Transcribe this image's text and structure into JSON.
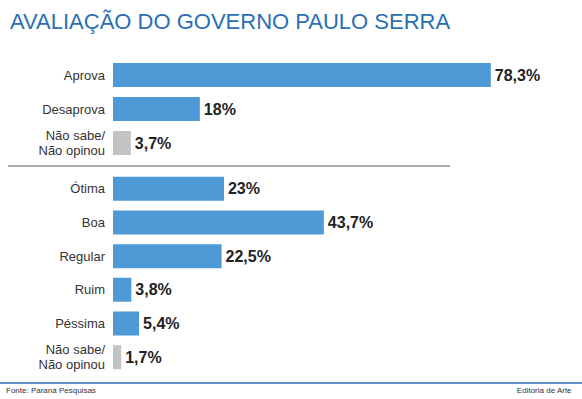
{
  "chart_data": [
    {
      "type": "bar",
      "title": "AVALIAÇÃO DO GOVERNO PAULO SERRA",
      "orientation": "horizontal",
      "categories": [
        "Aprova",
        "Desaprova",
        "Não sabe/\nNão opinou"
      ],
      "values": [
        78.3,
        18,
        3.7
      ],
      "value_labels": [
        "78,3%",
        "18%",
        "3,7%"
      ],
      "colors": [
        "#4e9ad6",
        "#4e9ad6",
        "#c3c3c3"
      ],
      "xlim": [
        0,
        80
      ],
      "tick_labels": "y",
      "data_labels": true,
      "grid": false
    },
    {
      "type": "bar",
      "orientation": "horizontal",
      "categories": [
        "Ótima",
        "Boa",
        "Regular",
        "Ruim",
        "Péssima",
        "Não sabe/\nNão opinou"
      ],
      "values": [
        23,
        43.7,
        22.5,
        3.8,
        5.4,
        1.7
      ],
      "value_labels": [
        "23%",
        "43,7%",
        "22,5%",
        "3,8%",
        "5,4%",
        "1,7%"
      ],
      "colors": [
        "#4e9ad6",
        "#4e9ad6",
        "#4e9ad6",
        "#4e9ad6",
        "#4e9ad6",
        "#c3c3c3"
      ],
      "xlim": [
        0,
        80
      ],
      "tick_labels": "y",
      "data_labels": true,
      "grid": false,
      "annotations": [
        "Fonte: Paraná Pesquisas",
        "Editoria de Arte"
      ]
    }
  ]
}
